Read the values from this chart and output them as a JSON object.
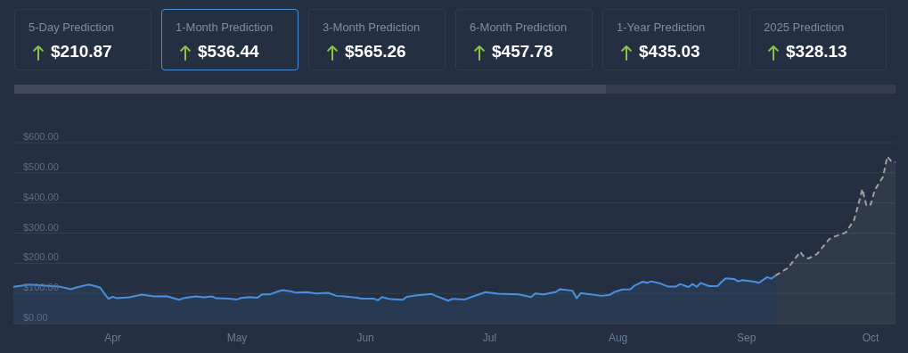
{
  "chart_data": [
    {
      "type": "other",
      "annotations": [
        "5-Day Prediction",
        "$210.87",
        "1-Month Prediction",
        "$536.44",
        "3-Month Prediction",
        "$565.26",
        "6-Month Prediction",
        "$457.78",
        "1-Year Prediction",
        "$435.03",
        "2025 Prediction",
        "$328.13"
      ]
    },
    {
      "type": "area",
      "xlim": [
        "--03-08",
        "--10-07"
      ],
      "xticks": [
        {
          "value": "--04-01",
          "label": "Apr"
        },
        {
          "value": "--05-01",
          "label": "May"
        },
        {
          "value": "--06-01",
          "label": "Jun"
        },
        {
          "value": "--07-01",
          "label": "Jul"
        },
        {
          "value": "--08-01",
          "label": "Aug"
        },
        {
          "value": "--09-01",
          "label": "Sep"
        },
        {
          "value": "--10-01",
          "label": "Oct"
        }
      ],
      "ylim": [
        0,
        600
      ],
      "yticks": [
        {
          "value": 0,
          "label": "$0.00"
        },
        {
          "value": 100,
          "label": "$100.00"
        },
        {
          "value": 200,
          "label": "$200.00"
        },
        {
          "value": 300,
          "label": "$300.00"
        },
        {
          "value": 400,
          "label": "$400.00"
        },
        {
          "value": 500,
          "label": "$500.00"
        },
        {
          "value": 600,
          "label": "$600.00"
        }
      ],
      "grid": "y",
      "series": [
        {
          "color": "#4a90e2",
          "line_style": "solid",
          "x": [
            "--03-08",
            "--03-12",
            "--03-15",
            "--03-19",
            "--03-22",
            "--03-23",
            "--03-26",
            "--03-27",
            "--03-29",
            "--03-30",
            "--03-31",
            "--04-01",
            "--04-02",
            "--04-05",
            "--04-08",
            "--04-11",
            "--04-14",
            "--04-17",
            "--04-18",
            "--04-21",
            "--04-23",
            "--04-25",
            "--04-26",
            "--04-29",
            "--05-01",
            "--05-02",
            "--05-04",
            "--05-06",
            "--05-07",
            "--05-09",
            "--05-11",
            "--05-12",
            "--05-14",
            "--05-15",
            "--05-18",
            "--05-20",
            "--05-23",
            "--05-25",
            "--05-27",
            "--05-30",
            "--05-31",
            "--06-03",
            "--06-04",
            "--06-05",
            "--06-07",
            "--06-10",
            "--06-11",
            "--06-13",
            "--06-17",
            "--06-18",
            "--06-21",
            "--06-22",
            "--06-25",
            "--06-27",
            "--06-30",
            "--07-03",
            "--07-08",
            "--07-11",
            "--07-12",
            "--07-14",
            "--07-17",
            "--07-18",
            "--07-21",
            "--07-22",
            "--07-23",
            "--07-28",
            "--07-30",
            "--07-31",
            "--08-02",
            "--08-04",
            "--08-05",
            "--08-07",
            "--08-08",
            "--08-09",
            "--08-11",
            "--08-13",
            "--08-15",
            "--08-16",
            "--08-18",
            "--08-19",
            "--08-20",
            "--08-21",
            "--08-23",
            "--08-25",
            "--08-26",
            "--08-27",
            "--08-29",
            "--08-30",
            "--08-31",
            "--09-03",
            "--09-04",
            "--09-06",
            "--09-07",
            "--09-08"
          ],
          "values": [
            122,
            129,
            126,
            123,
            114,
            119,
            129,
            127,
            119,
            99,
            82,
            89,
            84,
            87,
            96,
            90,
            91,
            79,
            84,
            90,
            87,
            90,
            84,
            83,
            80,
            85,
            88,
            86,
            97,
            97,
            107,
            111,
            107,
            103,
            104,
            100,
            102,
            92,
            90,
            86,
            83,
            83,
            77,
            88,
            81,
            79,
            89,
            93,
            98,
            92,
            76,
            82,
            80,
            90,
            104,
            99,
            97,
            88,
            100,
            97,
            105,
            114,
            109,
            84,
            101,
            92,
            95,
            104,
            113,
            114,
            126,
            139,
            135,
            140,
            134,
            123,
            123,
            131,
            121,
            131,
            122,
            135,
            124,
            124,
            138,
            150,
            148,
            140,
            144,
            139,
            135,
            154,
            149,
            159
          ]
        },
        {
          "color": "#a0a0a0",
          "line_style": "dashed",
          "x": [
            "--09-08",
            "--09-11",
            "--09-14",
            "--09-15",
            "--09-16",
            "--09-18",
            "--09-21",
            "--09-22",
            "--09-25",
            "--09-27",
            "--09-28",
            "--09-29",
            "--09-30",
            "--10-01",
            "--10-02",
            "--10-04",
            "--10-05",
            "--10-06",
            "--10-07"
          ],
          "values": [
            159,
            184,
            238,
            220,
            216,
            230,
            280,
            287,
            302,
            344,
            393,
            446,
            390,
            395,
            443,
            487,
            554,
            538,
            535
          ]
        }
      ]
    }
  ]
}
